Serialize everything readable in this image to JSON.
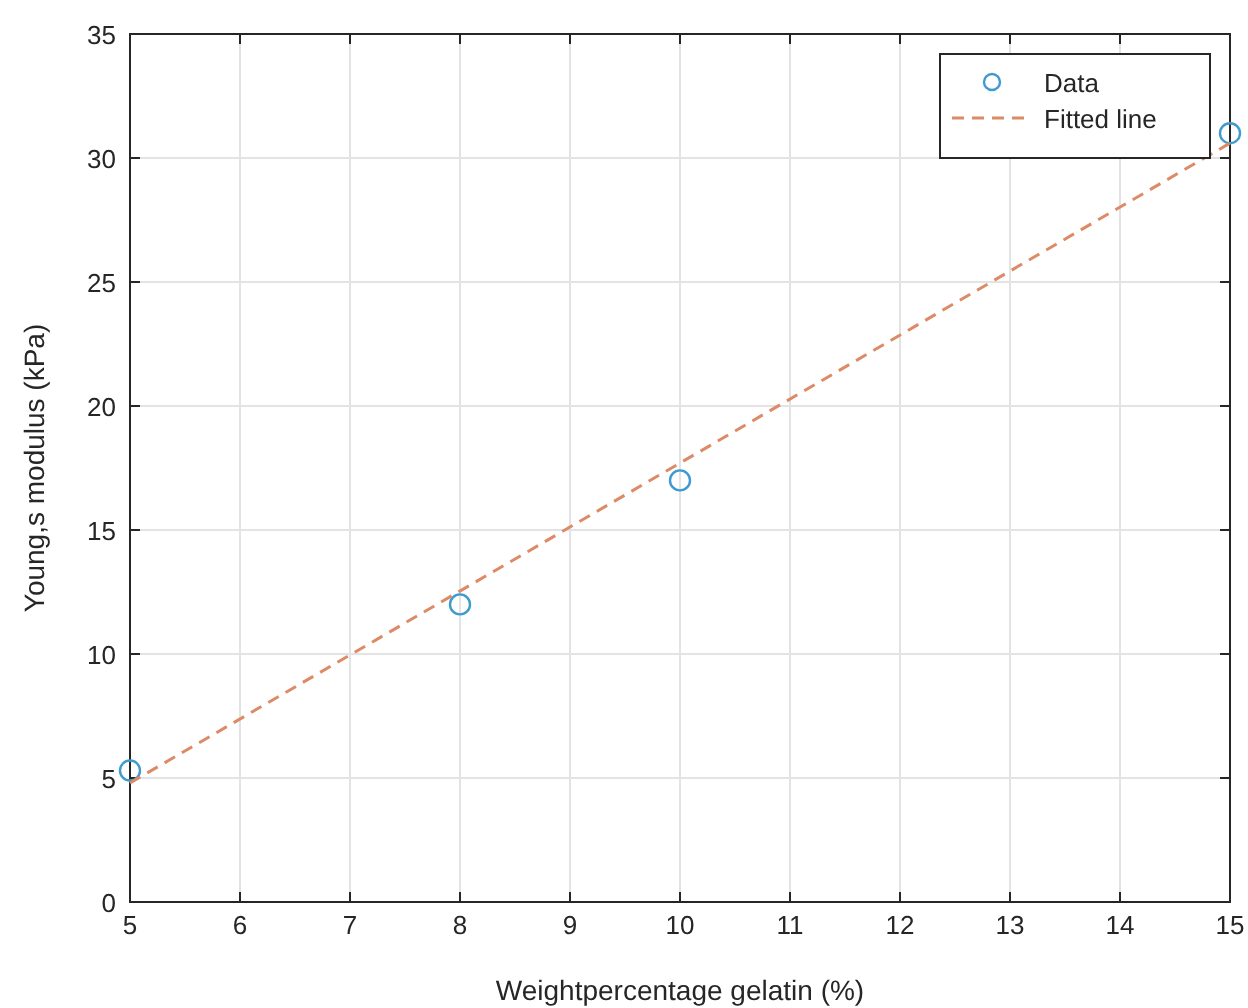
{
  "chart_data": {
    "type": "scatter",
    "xlabel": "Weightpercentage gelatin (%)",
    "ylabel": "Young,s modulus (kPa)",
    "xlim": [
      5,
      15
    ],
    "xticks": [
      5,
      6,
      7,
      8,
      9,
      10,
      11,
      12,
      13,
      14,
      15
    ],
    "ylim": [
      0,
      35
    ],
    "yticks": [
      0,
      5,
      10,
      15,
      20,
      25,
      30,
      35
    ],
    "grid": true,
    "legend": "top right",
    "series": [
      {
        "name": "Data",
        "marker": "circle",
        "color": "#3f9bcf",
        "x": [
          5,
          8,
          10,
          15
        ],
        "values": [
          5.3,
          12,
          17,
          31
        ]
      },
      {
        "name": "Fitted line",
        "type": "line",
        "marker": "none",
        "line_style": "dashed",
        "color": "#dd8a66",
        "x": [
          5,
          15
        ],
        "values": [
          4.8,
          30.6
        ]
      }
    ]
  }
}
